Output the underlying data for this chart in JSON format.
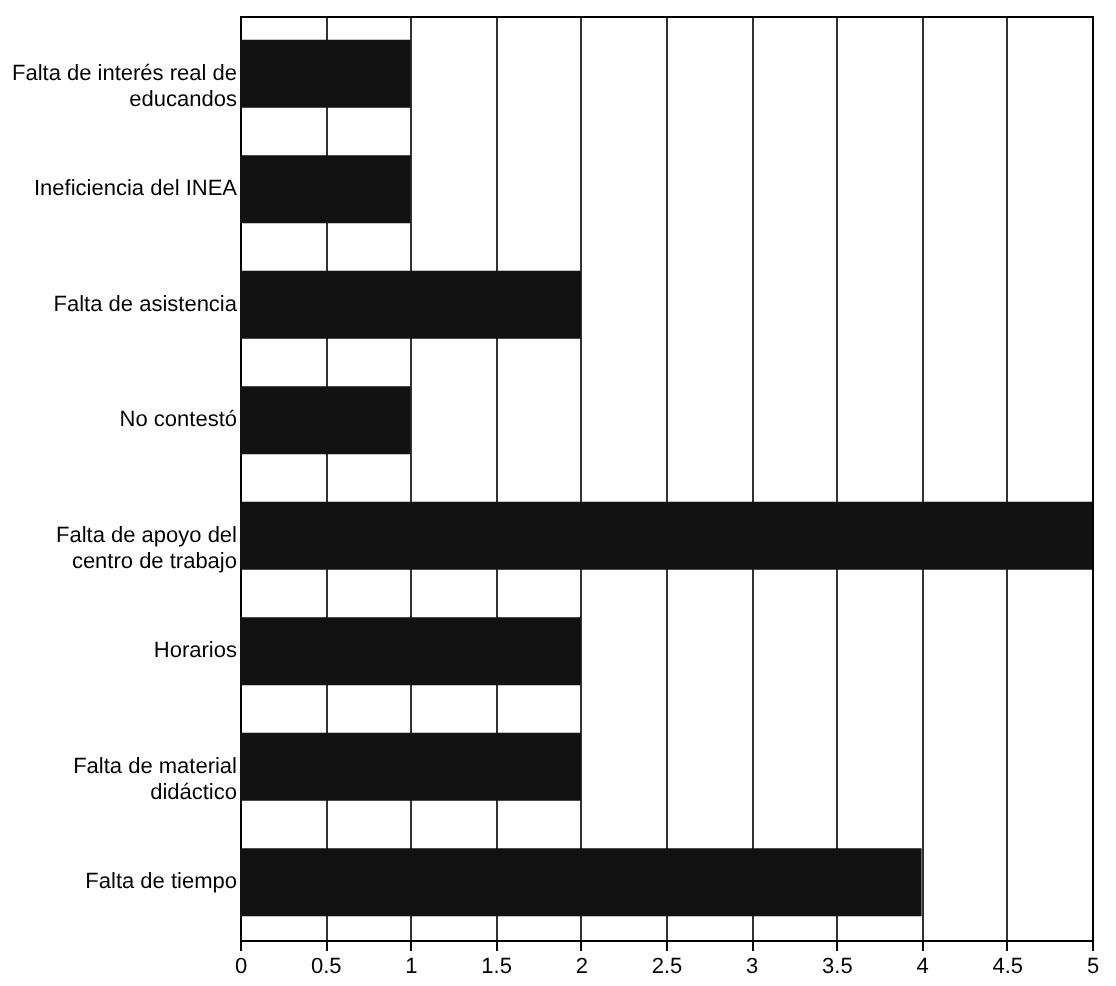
{
  "chart_data": {
    "type": "bar",
    "orientation": "horizontal",
    "categories": [
      "Falta de interés real de educandos",
      "Ineficiencia del INEA",
      "Falta de asistencia",
      "No contestó",
      "Falta de apoyo del centro de trabajo",
      "Horarios",
      "Falta de material didáctico",
      "Falta de tiempo"
    ],
    "values": [
      1,
      1,
      2,
      1,
      5,
      2,
      2,
      4
    ],
    "color": "#111111",
    "xlim": [
      0,
      5
    ],
    "xticks": [
      0,
      0.5,
      1,
      1.5,
      2,
      2.5,
      3,
      3.5,
      4,
      4.5,
      5
    ],
    "grid": "x"
  }
}
